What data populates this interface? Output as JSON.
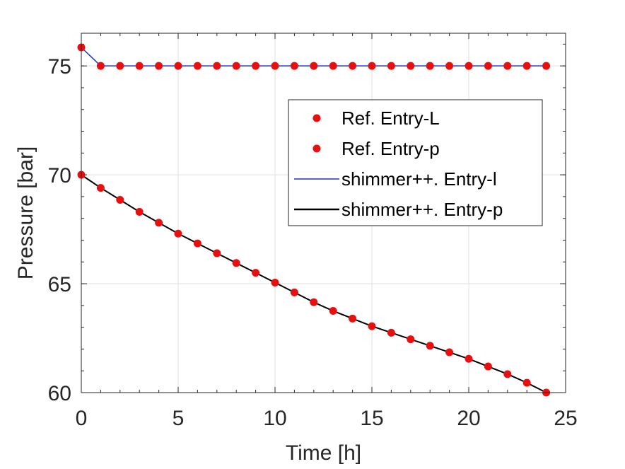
{
  "chart_data": {
    "type": "line",
    "xlabel": "Time [h]",
    "ylabel": "Pressure [bar]",
    "xlim": [
      0,
      25
    ],
    "ylim": [
      60,
      76.5
    ],
    "xticks": [
      "0",
      "5",
      "10",
      "15",
      "20",
      "25"
    ],
    "yticks": [
      "60",
      "65",
      "70",
      "75"
    ],
    "grid": true,
    "legend_position": "upper-right-inside",
    "x": [
      0,
      1,
      2,
      3,
      4,
      5,
      6,
      7,
      8,
      9,
      10,
      11,
      12,
      13,
      14,
      15,
      16,
      17,
      18,
      19,
      20,
      21,
      22,
      23,
      24
    ],
    "series": [
      {
        "name": "Ref. Entry-L",
        "style": "markers",
        "color": "#e8100f",
        "values": [
          75.85,
          75,
          75,
          75,
          75,
          75,
          75,
          75,
          75,
          75,
          75,
          75,
          75,
          75,
          75,
          75,
          75,
          75,
          75,
          75,
          75,
          75,
          75,
          75,
          75
        ]
      },
      {
        "name": "Ref. Entry-p",
        "style": "markers",
        "color": "#e8100f",
        "values": [
          70,
          69.4,
          68.85,
          68.3,
          67.8,
          67.3,
          66.85,
          66.4,
          65.95,
          65.5,
          65.05,
          64.6,
          64.15,
          63.75,
          63.4,
          63.05,
          62.75,
          62.45,
          62.15,
          61.85,
          61.55,
          61.2,
          60.85,
          60.45,
          60
        ]
      },
      {
        "name": "shimmer++. Entry-l",
        "style": "line",
        "color": "#1f35c1",
        "values": [
          75.85,
          75,
          75,
          75,
          75,
          75,
          75,
          75,
          75,
          75,
          75,
          75,
          75,
          75,
          75,
          75,
          75,
          75,
          75,
          75,
          75,
          75,
          75,
          75,
          75
        ]
      },
      {
        "name": "shimmer++. Entry-p",
        "style": "line",
        "color": "#000000",
        "values": [
          70,
          69.4,
          68.85,
          68.3,
          67.8,
          67.3,
          66.85,
          66.4,
          65.95,
          65.5,
          65.05,
          64.6,
          64.15,
          63.75,
          63.4,
          63.05,
          62.75,
          62.45,
          62.15,
          61.85,
          61.55,
          61.2,
          60.85,
          60.45,
          60
        ]
      }
    ]
  }
}
